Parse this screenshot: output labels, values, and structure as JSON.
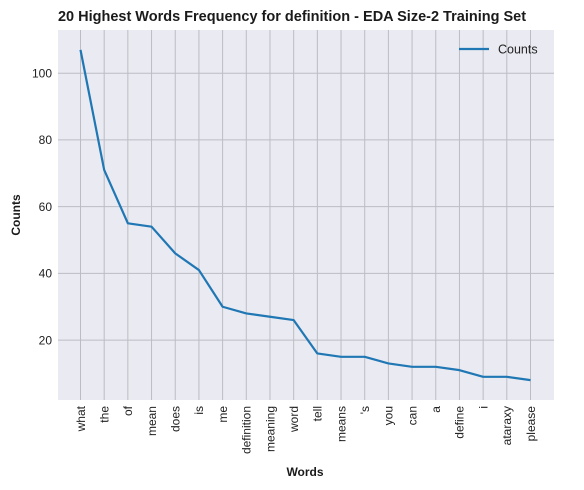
{
  "chart_data": {
    "type": "line",
    "title": "20 Highest Words Frequency for definition - EDA Size-2 Training Set",
    "xlabel": "Words",
    "ylabel": "Counts",
    "categories": [
      "what",
      "the",
      "of",
      "mean",
      "does",
      "is",
      "me",
      "definition",
      "meaning",
      "word",
      "tell",
      "means",
      "'s",
      "you",
      "can",
      "a",
      "define",
      "i",
      "ataraxy",
      "please"
    ],
    "series": [
      {
        "name": "Counts",
        "values": [
          107,
          71,
          55,
          54,
          46,
          41,
          30,
          28,
          27,
          26,
          16,
          15,
          15,
          13,
          12,
          12,
          11,
          9,
          9,
          8
        ]
      }
    ],
    "yticks": [
      20,
      40,
      60,
      80,
      100
    ],
    "ylim": [
      2.05,
      112.95
    ],
    "grid": true,
    "legend_position": "top-right",
    "colors": {
      "line": "#1f77b4",
      "plot_bg": "#eaeaf2",
      "grid": "#bcbcc4"
    }
  }
}
